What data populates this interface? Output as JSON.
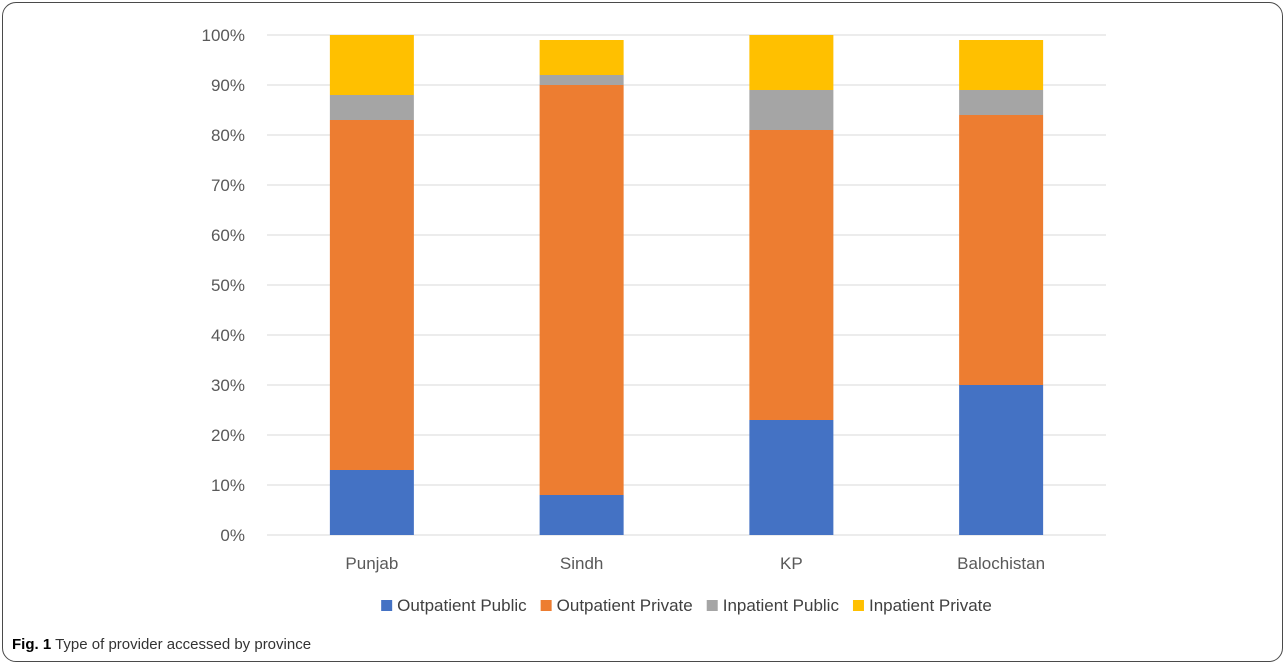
{
  "caption": {
    "label": "Fig. 1",
    "text": "Type of provider accessed by province"
  },
  "chart_data": {
    "type": "bar",
    "stacked": true,
    "categories": [
      "Punjab",
      "Sindh",
      "KP",
      "Balochistan"
    ],
    "series": [
      {
        "name": "Outpatient Public",
        "color": "#4472C4",
        "values": [
          13,
          8,
          23,
          30
        ]
      },
      {
        "name": "Outpatient Private",
        "color": "#ED7D31",
        "values": [
          70,
          82,
          58,
          54
        ]
      },
      {
        "name": "Inpatient Public",
        "color": "#A5A5A5",
        "values": [
          5,
          2,
          8,
          5
        ]
      },
      {
        "name": "Inpatient Private",
        "color": "#FFC000",
        "values": [
          12,
          7,
          11,
          10
        ]
      }
    ],
    "ylim": [
      0,
      100
    ],
    "yticks": [
      "0%",
      "10%",
      "20%",
      "30%",
      "40%",
      "50%",
      "60%",
      "70%",
      "80%",
      "90%",
      "100%"
    ],
    "grid": true,
    "legend_position": "bottom"
  }
}
